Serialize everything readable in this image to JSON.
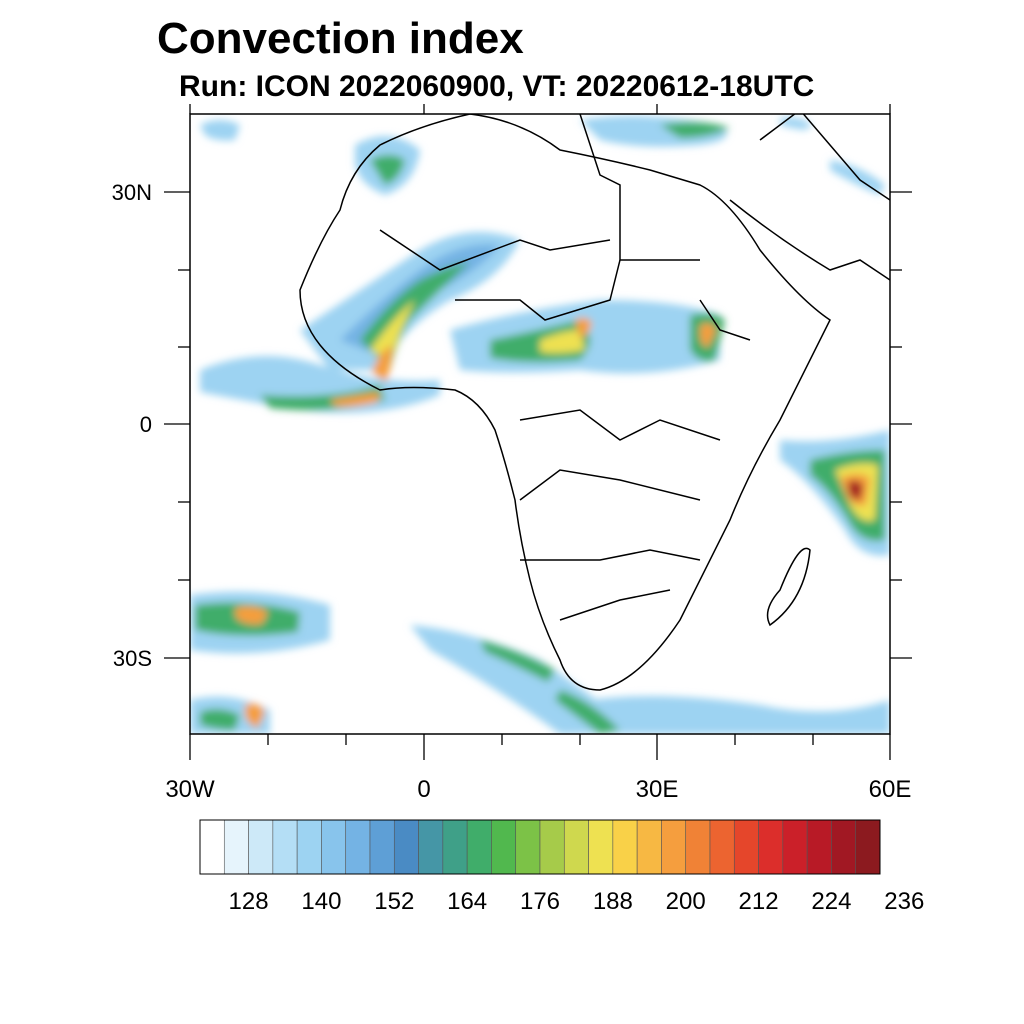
{
  "title": "Convection index",
  "subtitle": "Run: ICON 2022060900,  VT: 20220612-18UTC",
  "axes": {
    "lat_labels": [
      "30N",
      "0",
      "30S"
    ],
    "lon_labels": [
      "30W",
      "0",
      "30E",
      "60E"
    ]
  },
  "colorbar": {
    "colors": [
      "#ffffff",
      "#e6f4fc",
      "#cde9f8",
      "#b4def5",
      "#9dd3f2",
      "#88c4ec",
      "#74b3e4",
      "#5e9fd6",
      "#4a8bc4",
      "#4596a6",
      "#3fa088",
      "#40ad6a",
      "#51b84e",
      "#7cc247",
      "#a6cb4a",
      "#cfd84e",
      "#eee151",
      "#f9d148",
      "#f7b843",
      "#f59e3e",
      "#f08236",
      "#ec6430",
      "#e5462b",
      "#dc2e2b",
      "#cb2029",
      "#b81a26",
      "#a11823",
      "#8c1a1f"
    ],
    "labels": [
      "128",
      "140",
      "152",
      "164",
      "176",
      "188",
      "200",
      "212",
      "224",
      "236"
    ]
  },
  "map_colors": {
    "light_blue": "#9dd3f2",
    "mid_blue": "#74b3e4",
    "green": "#40ad6a",
    "yellow": "#eee151",
    "orange": "#f59e3e",
    "red": "#dc2e2b",
    "dark_red": "#a11823"
  }
}
